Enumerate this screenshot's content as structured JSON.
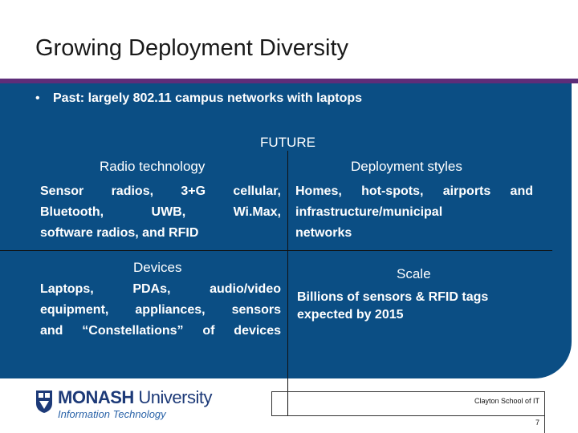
{
  "slide": {
    "title": "Growing Deployment Diversity",
    "bullet": "Past: largely 802.11 campus networks with laptops",
    "future_label": "FUTURE",
    "quadrants": {
      "radio": {
        "heading": "Radio technology",
        "lines": [
          "Sensor radios, 3+G cellular,",
          "Bluetooth, UWB, Wi.Max,",
          "software radios, and RFID"
        ]
      },
      "deployment": {
        "heading": "Deployment styles",
        "lines": [
          "Homes, hot-spots, airports and",
          "infrastructure/municipal",
          "networks"
        ]
      },
      "devices": {
        "heading": "Devices",
        "lines": [
          "Laptops, PDAs, audio/video",
          "equipment, appliances, sensors",
          "and “Constellations” of devices"
        ]
      },
      "scale": {
        "heading": "Scale",
        "lines": [
          "Billions of sensors & RFID tags",
          "expected by 2015"
        ]
      }
    }
  },
  "footer": {
    "school": "Clayton School of IT",
    "page_number": "7",
    "logo": {
      "brand_bold": "MONASH",
      "brand_regular": " University",
      "subtitle": "Information Technology"
    }
  },
  "colors": {
    "panel": "#0b4e84",
    "accent": "#5e2d79",
    "logo_blue": "#1d3a78"
  }
}
